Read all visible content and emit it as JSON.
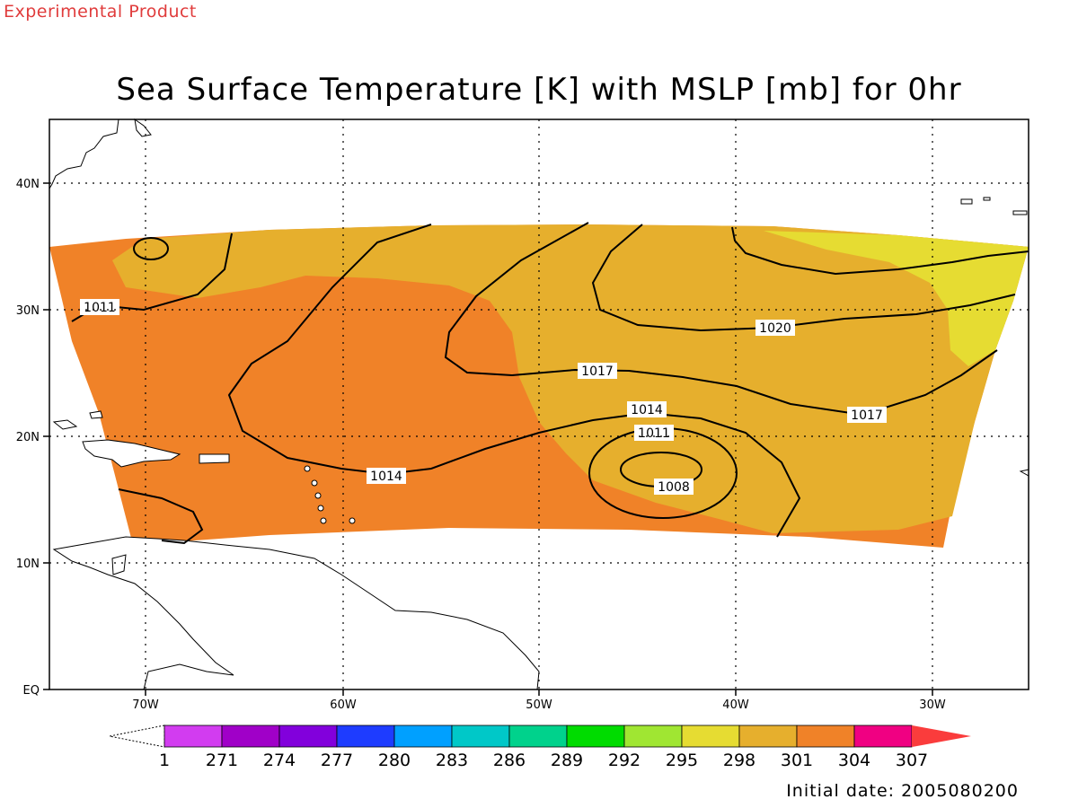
{
  "header": {
    "product_label": "Experimental Product",
    "title": "Sea Surface Temperature [K] with MSLP [mb] for 0hr",
    "initial_date": "Initial date: 2005080200"
  },
  "map": {
    "lat_ticks": [
      "EQ",
      "10N",
      "20N",
      "30N",
      "40N"
    ],
    "lon_ticks": [
      "70W",
      "60W",
      "50W",
      "40W",
      "30W"
    ],
    "grid": true
  },
  "contours": {
    "labels": [
      "1011",
      "1014",
      "1017",
      "1017",
      "1020",
      "1014",
      "1011",
      "1008"
    ]
  },
  "legend": {
    "labels": [
      "1",
      "271",
      "274",
      "277",
      "280",
      "283",
      "286",
      "289",
      "292",
      "295",
      "298",
      "301",
      "304",
      "307"
    ],
    "colors": [
      "#d23cf0",
      "#a000c8",
      "#8200dc",
      "#1e3cff",
      "#00a0ff",
      "#00c8c8",
      "#00d28c",
      "#00dc00",
      "#a0e632",
      "#e6dc32",
      "#e6af2d",
      "#f08228",
      "#f00082",
      "#fa3c3c"
    ],
    "units": "K"
  },
  "colors": {
    "sst_301_304": "#f08228",
    "sst_298_301": "#e6af2d",
    "sst_295_298": "#e6dc32",
    "product_label": "#e03c3c"
  }
}
